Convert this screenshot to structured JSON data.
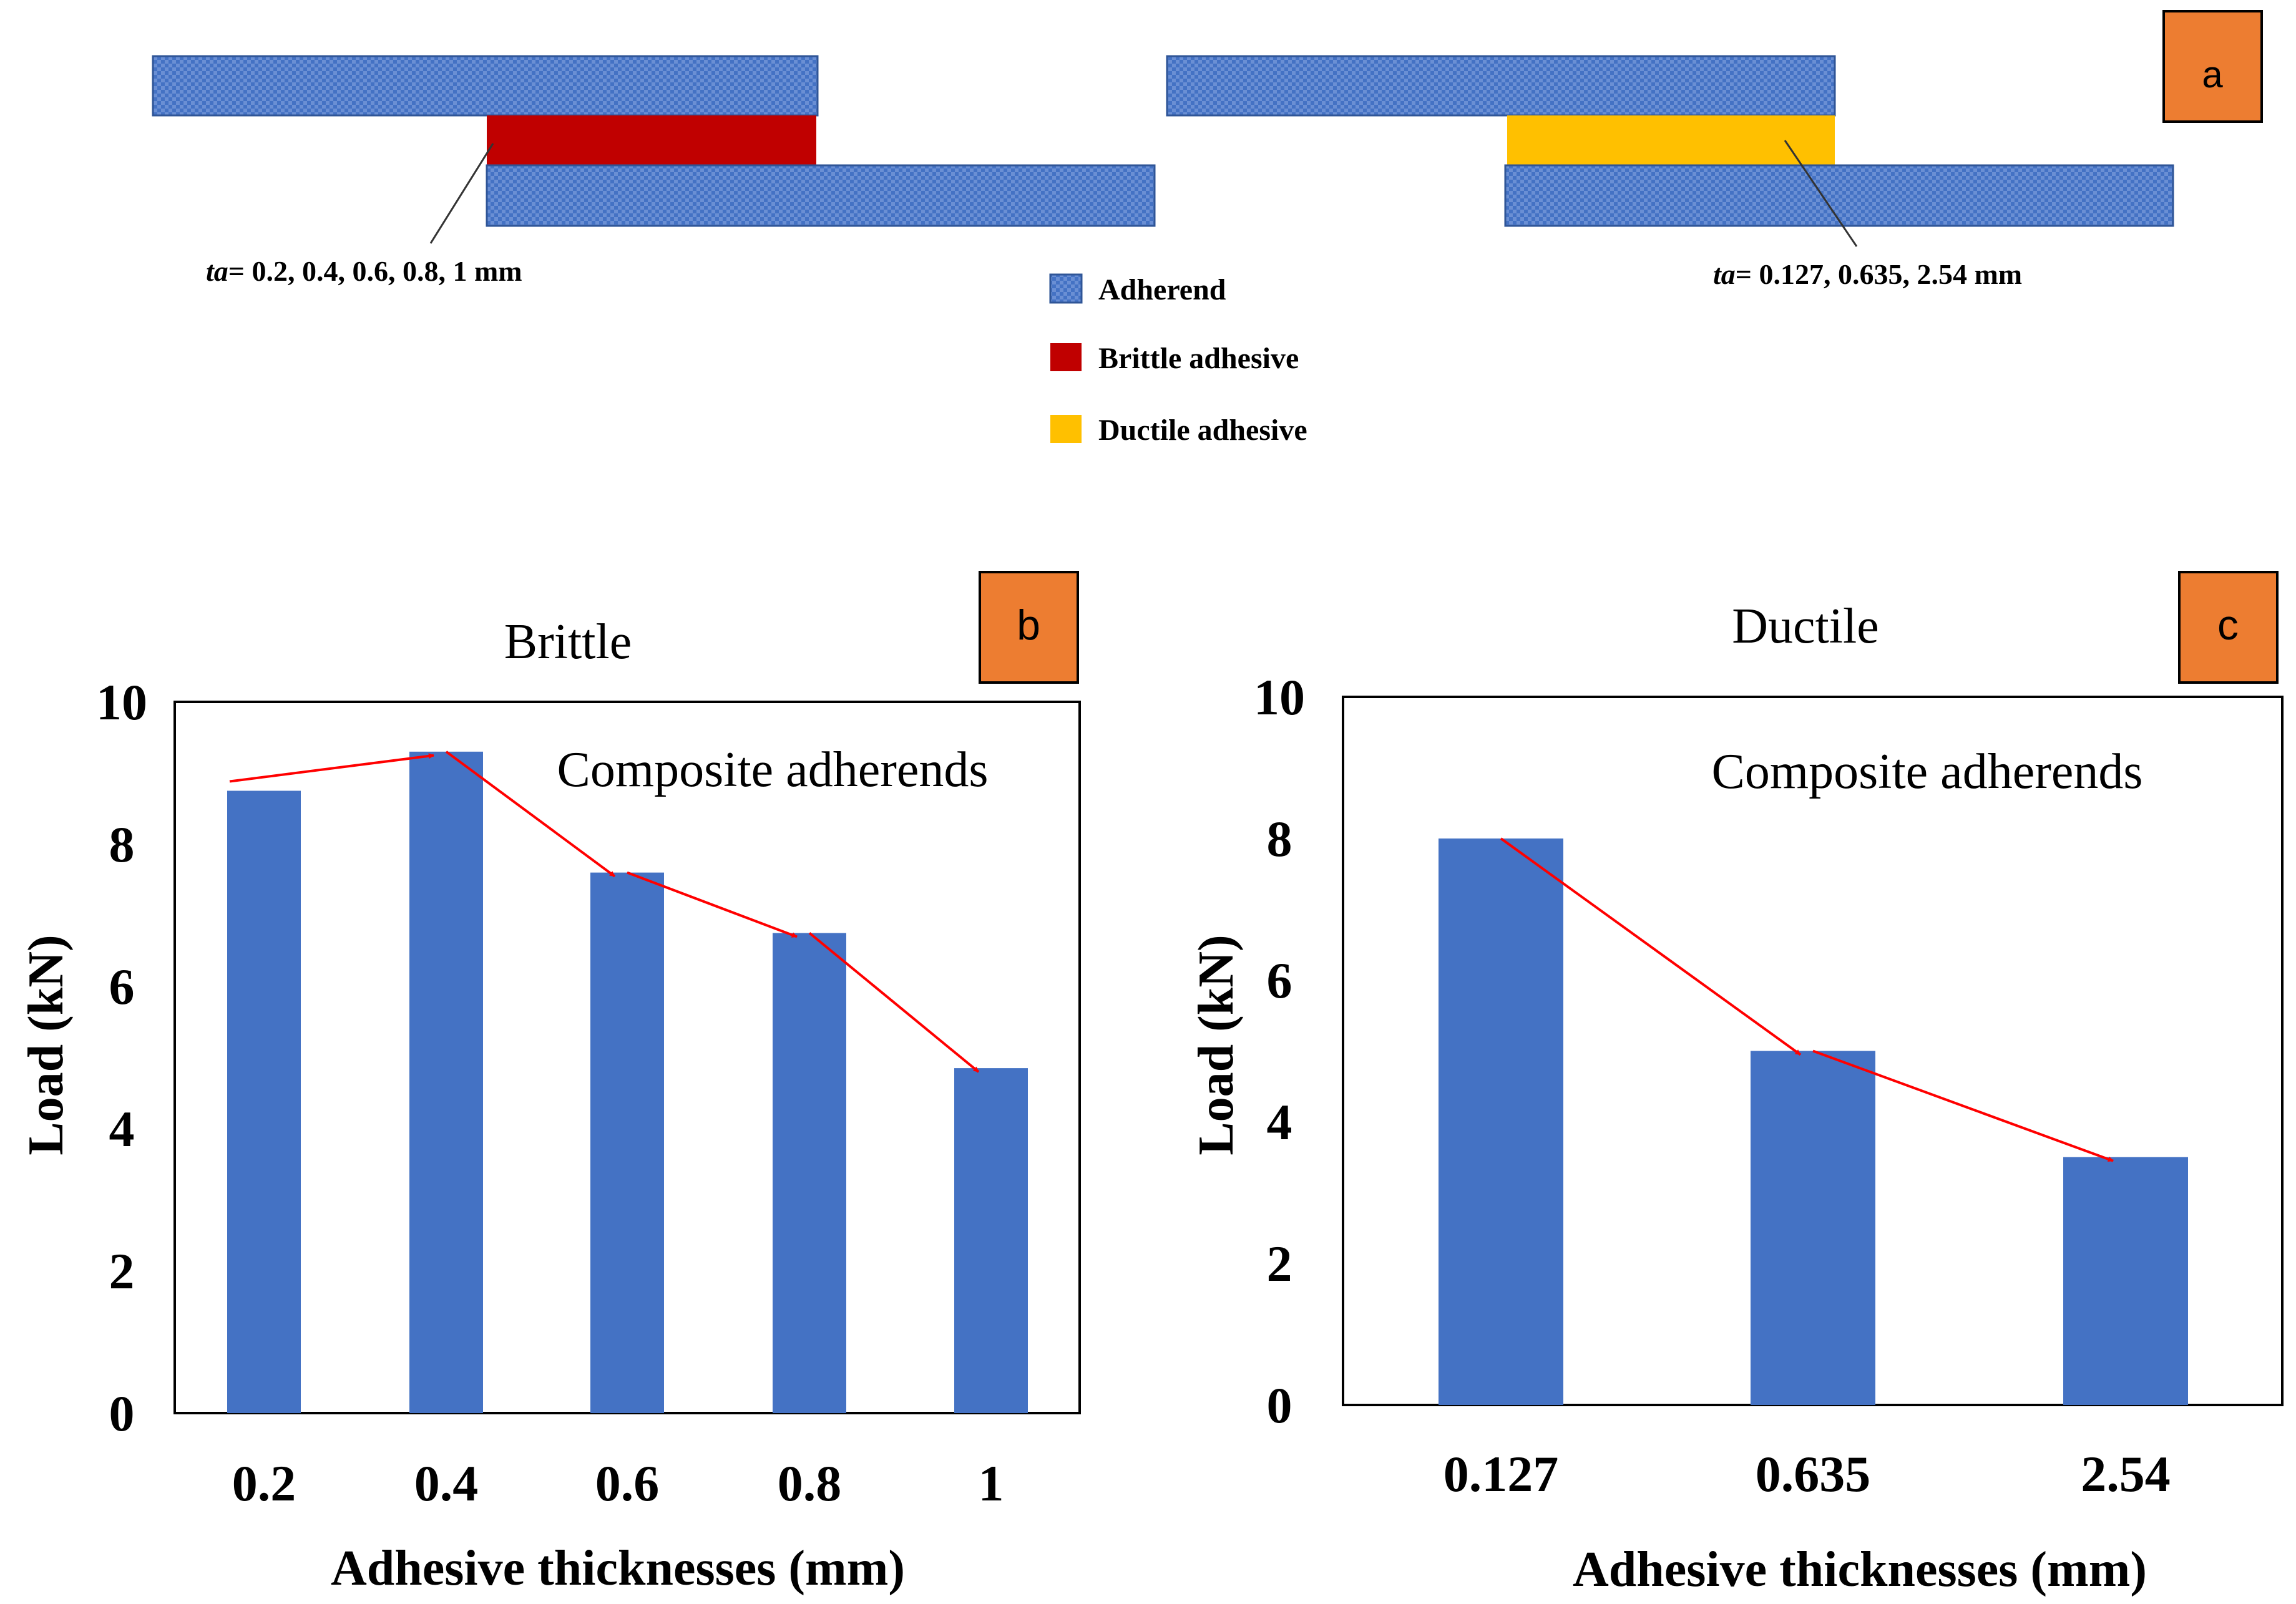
{
  "colors": {
    "bar": "#4472C4",
    "adherend": "#4472C4",
    "brittle": "#C00000",
    "ductile": "#FFC000",
    "panel_label_bg": "#ED7D31",
    "trend": "#FF0000"
  },
  "panel_a": {
    "label": "a",
    "left_dim": {
      "prefix": "ta",
      "values": "= 0.2, 0.4, 0.6, 0.8, 1 mm"
    },
    "right_dim": {
      "prefix": "ta",
      "values": "= 0.127, 0.635, 2.54 mm"
    },
    "legend": [
      {
        "key": "adherend",
        "label": "Adherend"
      },
      {
        "key": "brittle",
        "label": "Brittle adhesive"
      },
      {
        "key": "ductile",
        "label": "Ductile adhesive"
      }
    ]
  },
  "chart_data": [
    {
      "type": "bar",
      "panel_label": "b",
      "title": "Brittle",
      "annotation": "Composite adherends",
      "categories": [
        "0.2",
        "0.4",
        "0.6",
        "0.8",
        "1"
      ],
      "values": [
        8.75,
        9.3,
        7.6,
        6.75,
        4.85
      ],
      "xlabel": "Adhesive thicknesses (mm)",
      "ylabel": "Load (kN)",
      "ylim": [
        0,
        10
      ],
      "yticks": [
        "0",
        "2",
        "4",
        "6",
        "8",
        "10"
      ],
      "trend_arrows": true
    },
    {
      "type": "bar",
      "panel_label": "c",
      "title": "Ductile",
      "annotation": "Composite adherends",
      "categories": [
        "0.127",
        "0.635",
        "2.54"
      ],
      "values": [
        8.0,
        5.0,
        3.5
      ],
      "xlabel": "Adhesive thicknesses (mm)",
      "ylabel": "Load (kN)",
      "ylim": [
        0,
        10
      ],
      "yticks": [
        "0",
        "2",
        "4",
        "6",
        "8",
        "10"
      ],
      "trend_arrows": true
    }
  ]
}
